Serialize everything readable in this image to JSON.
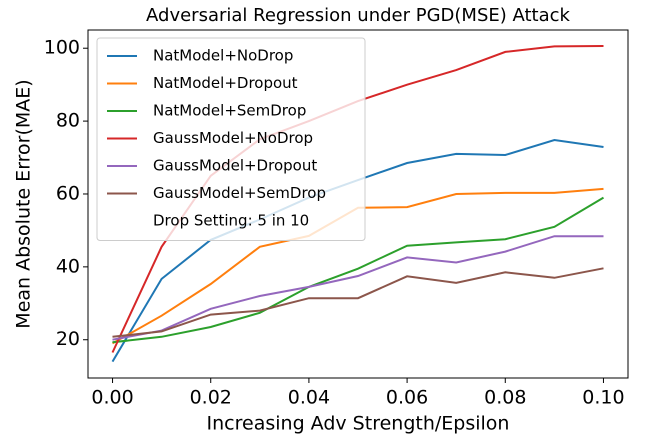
{
  "chart_data": {
    "type": "line",
    "title": "Adversarial Regression under PGD(MSE) Attack",
    "x_label": "Increasing Adv Strength/Epsilon",
    "y_label": "Mean Absolute Error(MAE)",
    "x": [
      0,
      0.01,
      0.02,
      0.03,
      0.04,
      0.05,
      0.06,
      0.07,
      0.08,
      0.09,
      0.1
    ],
    "series": [
      {
        "name": "NatModel+NoDrop",
        "color": "#1f77b4",
        "values": [
          14,
          36.7,
          47.4,
          53,
          59,
          63.8,
          68.5,
          71,
          70.7,
          74.8,
          72.9
        ]
      },
      {
        "name": "NatModel+Dropout",
        "color": "#ff7f0e",
        "values": [
          19,
          26.6,
          35.3,
          45.5,
          48.5,
          56.2,
          56.4,
          60,
          60.3,
          60.3,
          61.4
        ]
      },
      {
        "name": "NatModel+SemDrop",
        "color": "#2ca02c",
        "values": [
          19.3,
          20.8,
          23.5,
          27.4,
          34.5,
          39.5,
          45.8,
          46.7,
          47.6,
          51,
          59
        ]
      },
      {
        "name": "GaussModel+NoDrop",
        "color": "#d62728",
        "values": [
          16.5,
          45.5,
          65,
          75,
          80,
          85.5,
          90,
          94,
          99,
          100.5,
          100.6
        ]
      },
      {
        "name": "GaussModel+Dropout",
        "color": "#9467bd",
        "values": [
          20,
          22.5,
          28.5,
          32,
          34.5,
          37.5,
          42.6,
          41.2,
          44.2,
          48.4,
          48.4
        ]
      },
      {
        "name": "GaussModel+SemDrop",
        "color": "#8c564b",
        "values": [
          20.8,
          22.3,
          26.9,
          28,
          31.4,
          31.4,
          37.4,
          35.6,
          38.5,
          37,
          39.6
        ]
      }
    ],
    "legend_note": "Drop Setting: 5 in 10",
    "legend": "upper left",
    "xlim": [
      -0.005,
      0.105
    ],
    "xticks": [
      {
        "value": 0,
        "label": "0.00"
      },
      {
        "value": 0.02,
        "label": "0.02"
      },
      {
        "value": 0.04,
        "label": "0.04"
      },
      {
        "value": 0.06,
        "label": "0.06"
      },
      {
        "value": 0.08,
        "label": "0.08"
      },
      {
        "value": 0.1,
        "label": "0.10"
      }
    ],
    "ylim": [
      9.5,
      105
    ],
    "yticks": [
      20,
      40,
      60,
      80,
      100
    ],
    "grid": false
  }
}
